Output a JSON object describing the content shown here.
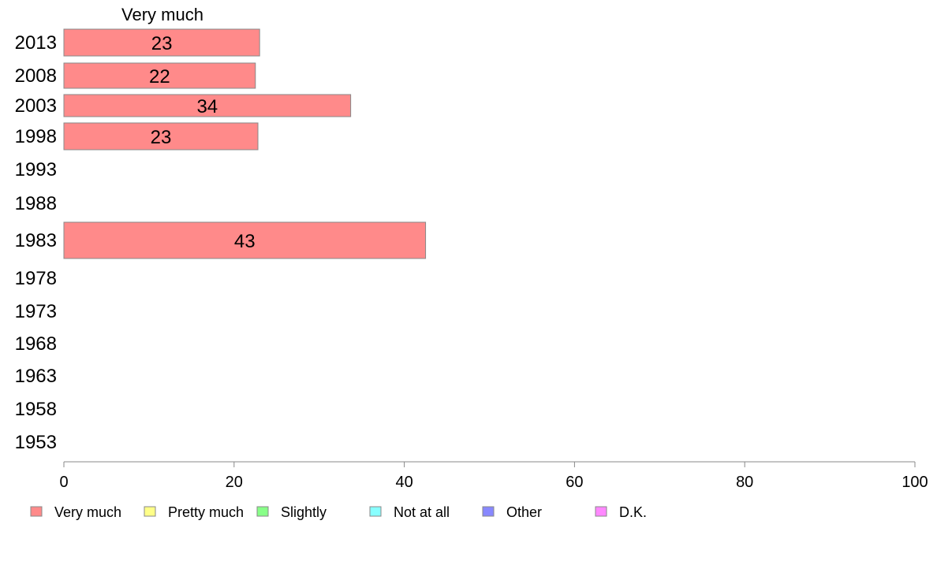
{
  "chart_data": {
    "type": "bar",
    "orientation": "horizontal",
    "title": "",
    "series_header": "Very much",
    "xlabel": "",
    "ylabel": "",
    "categories": [
      "2013",
      "2008",
      "2003",
      "1998",
      "1993",
      "1988",
      "1983",
      "1978",
      "1973",
      "1968",
      "1963",
      "1958",
      "1953"
    ],
    "series": [
      {
        "name": "Very much",
        "color": "#ff8a8a",
        "values": [
          23,
          22.5,
          33.7,
          22.8,
          null,
          null,
          42.5,
          null,
          null,
          null,
          null,
          null,
          null
        ],
        "labels": [
          "23",
          "22",
          "34",
          "23",
          "",
          "",
          "43",
          "",
          "",
          "",
          "",
          "",
          ""
        ]
      }
    ],
    "xlim": [
      0,
      100
    ],
    "xticks": [
      "0",
      "20",
      "40",
      "60",
      "80",
      "100"
    ],
    "grid": false,
    "legend_placement": "bottom",
    "legend": [
      {
        "label": "Very much",
        "color": "#ff8a8a"
      },
      {
        "label": "Pretty much",
        "color": "#ffff88"
      },
      {
        "label": "Slightly",
        "color": "#88ff88"
      },
      {
        "label": "Not at all",
        "color": "#88ffff"
      },
      {
        "label": "Other",
        "color": "#8888ff"
      },
      {
        "label": "D.K.",
        "color": "#ff88ff"
      }
    ]
  }
}
